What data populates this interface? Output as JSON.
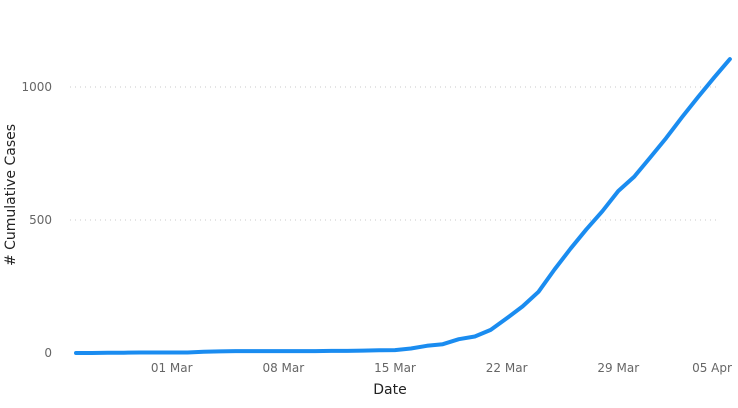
{
  "chart_data": {
    "type": "line",
    "xlabel": "Date",
    "ylabel": "# Cumulative Cases",
    "ylim": [
      0,
      1100
    ],
    "y_ticks": [
      0,
      500,
      1000
    ],
    "y_tick_labels": [
      "0",
      "500",
      "1000"
    ],
    "x_tick_labels": [
      "01 Mar",
      "08 Mar",
      "15 Mar",
      "22 Mar",
      "29 Mar",
      "05 Apr"
    ],
    "grid": "horizontal dotted",
    "line_color": "#1a8cf0",
    "series": [
      {
        "x": [
          "2020-02-24",
          "2020-02-25",
          "2020-02-26",
          "2020-02-27",
          "2020-02-28",
          "2020-02-29",
          "2020-03-01",
          "2020-03-02",
          "2020-03-03",
          "2020-03-04",
          "2020-03-05",
          "2020-03-06",
          "2020-03-07",
          "2020-03-08",
          "2020-03-09",
          "2020-03-10",
          "2020-03-11",
          "2020-03-12",
          "2020-03-13",
          "2020-03-14",
          "2020-03-15",
          "2020-03-16",
          "2020-03-17",
          "2020-03-18",
          "2020-03-19",
          "2020-03-20",
          "2020-03-21",
          "2020-03-22",
          "2020-03-23",
          "2020-03-24",
          "2020-03-25",
          "2020-03-26",
          "2020-03-27",
          "2020-03-28",
          "2020-03-29",
          "2020-03-30",
          "2020-03-31",
          "2020-04-01",
          "2020-04-02",
          "2020-04-03",
          "2020-04-04",
          "2020-04-05"
        ],
        "values": [
          0,
          0,
          1,
          1,
          2,
          2,
          2,
          2,
          5,
          6,
          7,
          7,
          7,
          7,
          7,
          7,
          8,
          8,
          9,
          10,
          11,
          17,
          27,
          33,
          52,
          62,
          87,
          130,
          175,
          230,
          314,
          392,
          465,
          533,
          609,
          663,
          735,
          808,
          887,
          962,
          1035,
          1105
        ]
      }
    ]
  }
}
